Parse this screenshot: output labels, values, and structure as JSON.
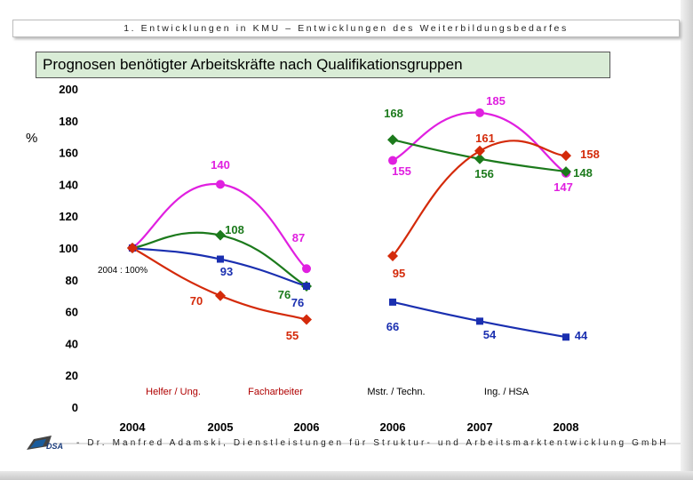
{
  "header": {
    "text": "1. Entwicklungen in KMU – Entwicklungen des Weiterbildungsbedarfes"
  },
  "footer": {
    "text": "- Dr. Manfred Adamski, Dienstleistungen für Struktur- und Arbeitsmarktentwicklung GmbH",
    "logo_text": "DSA"
  },
  "colors": {
    "magenta": "#e020e0",
    "green": "#1c7a1c",
    "blue": "#1a2fb0",
    "red": "#d42a0a",
    "label_green": "#1c7a1c"
  },
  "chart_data": {
    "type": "line",
    "title": "Prognosen benötigter Arbeitskräfte nach Qualifikationsgruppen",
    "ylabel": "%",
    "ylim": [
      0,
      200
    ],
    "yticks": [
      0,
      20,
      40,
      60,
      80,
      100,
      120,
      140,
      160,
      180,
      200
    ],
    "categories": [
      "2004",
      "2005",
      "2006",
      "2006",
      "2007",
      "2008"
    ],
    "reference_note": "2004 : 100%",
    "group_labels": [
      "Helfer / Ung.",
      "Facharbeiter",
      "Mstr. / Techn.",
      "Ing. / HSA"
    ],
    "series": [
      {
        "name": "magenta",
        "color": "#e020e0",
        "segments": [
          {
            "idx": [
              0,
              1,
              2
            ],
            "values": [
              100,
              140,
              87
            ]
          },
          {
            "idx": [
              3,
              4,
              5
            ],
            "values": [
              155,
              185,
              147
            ]
          }
        ],
        "labels": [
          "140",
          "87",
          "155",
          "185",
          "147"
        ]
      },
      {
        "name": "green",
        "color": "#1c7a1c",
        "segments": [
          {
            "idx": [
              0,
              1,
              2
            ],
            "values": [
              100,
              108,
              76
            ]
          },
          {
            "idx": [
              3,
              4,
              5
            ],
            "values": [
              168,
              156,
              148
            ]
          }
        ],
        "labels": [
          "108",
          "76",
          "168",
          "156",
          "148"
        ]
      },
      {
        "name": "blue",
        "color": "#1a2fb0",
        "segments": [
          {
            "idx": [
              0,
              1,
              2
            ],
            "values": [
              100,
              93,
              76
            ]
          },
          {
            "idx": [
              3,
              4,
              5
            ],
            "values": [
              66,
              54,
              44
            ]
          }
        ],
        "labels": [
          "93",
          "76",
          "66",
          "54",
          "44"
        ]
      },
      {
        "name": "red",
        "color": "#d42a0a",
        "segments": [
          {
            "idx": [
              0,
              1,
              2
            ],
            "values": [
              100,
              70,
              55
            ]
          },
          {
            "idx": [
              3,
              4,
              5
            ],
            "values": [
              95,
              161,
              158
            ]
          }
        ],
        "labels": [
          "70",
          "55",
          "95",
          "161",
          "158"
        ]
      }
    ]
  }
}
